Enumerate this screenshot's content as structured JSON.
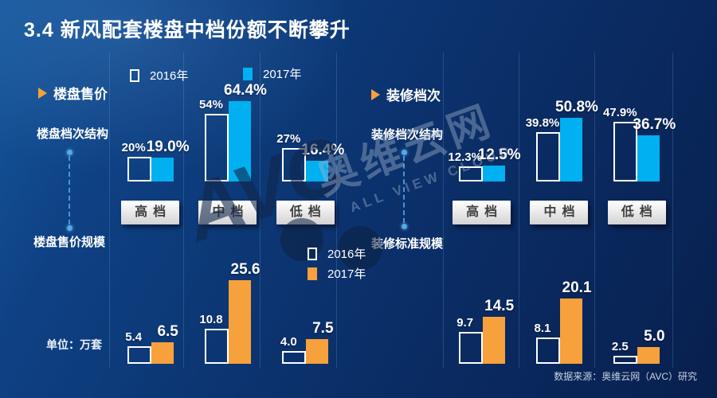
{
  "title": "3.4  新风配套楼盘中档份额不断攀升",
  "source": "数据来源：奥维云网（AVC）研究",
  "unit_label": "单位：万套",
  "watermark": {
    "brand_cn": "奥维云网",
    "brand_en": "ALL VIEW CLOUD",
    "logo": "AVC"
  },
  "colors": {
    "background": "#0b306a",
    "cyan_2017": "#00b0f0",
    "orange_2017": "#f6a13c",
    "outline_2016": "#ffffff",
    "accent": "#f6a13c"
  },
  "sections": {
    "left": {
      "title": "楼盘售价",
      "structure": "楼盘档次结构",
      "scale": "楼盘售价规模"
    },
    "right": {
      "title": "装修档次",
      "structure": "装修档次结构",
      "scale": "装修标准规模"
    }
  },
  "legends": {
    "top": [
      {
        "label": "2016年",
        "swatch": "outline"
      },
      {
        "label": "2017年",
        "swatch": "cyan"
      }
    ],
    "bottom": [
      {
        "label": "2016年",
        "swatch": "outline"
      },
      {
        "label": "2017年",
        "swatch": "orange"
      }
    ]
  },
  "chart_data": [
    {
      "id": "price-structure",
      "type": "bar",
      "panel": "top-left",
      "title": "楼盘档次结构",
      "unit": "%",
      "categories": [
        "高档",
        "中档",
        "低档"
      ],
      "ylim": [
        0,
        70
      ],
      "legend_position": "top",
      "series": [
        {
          "name": "2016年",
          "style": "outline",
          "values": [
            20,
            54,
            27
          ],
          "labels": [
            "20%",
            "54%",
            "27%"
          ]
        },
        {
          "name": "2017年",
          "style": "cyan",
          "values": [
            19.0,
            64.4,
            16.4
          ],
          "labels": [
            "19.0%",
            "64.4%",
            "16.4%"
          ]
        }
      ]
    },
    {
      "id": "decoration-structure",
      "type": "bar",
      "panel": "top-right",
      "title": "装修档次结构",
      "unit": "%",
      "categories": [
        "高档",
        "中档",
        "低档"
      ],
      "ylim": [
        0,
        70
      ],
      "series": [
        {
          "name": "2016年",
          "style": "outline",
          "values": [
            12.3,
            39.8,
            47.9
          ],
          "labels": [
            "12.3%",
            "39.8%",
            "47.9%"
          ]
        },
        {
          "name": "2017年",
          "style": "cyan",
          "values": [
            12.5,
            50.8,
            36.7
          ],
          "labels": [
            "12.5%",
            "50.8%",
            "36.7%"
          ]
        }
      ]
    },
    {
      "id": "price-scale",
      "type": "bar",
      "panel": "bottom-left",
      "title": "楼盘售价规模",
      "unit": "万套",
      "categories": [
        "高档",
        "中档",
        "低档"
      ],
      "ylim": [
        0,
        28
      ],
      "legend_position": "middle",
      "series": [
        {
          "name": "2016年",
          "style": "outline",
          "values": [
            5.4,
            10.8,
            4.0
          ],
          "labels": [
            "5.4",
            "10.8",
            "4.0"
          ]
        },
        {
          "name": "2017年",
          "style": "orange",
          "values": [
            6.5,
            25.6,
            7.5
          ],
          "labels": [
            "6.5",
            "25.6",
            "7.5"
          ]
        }
      ]
    },
    {
      "id": "decoration-scale",
      "type": "bar",
      "panel": "bottom-right",
      "title": "装修标准规模",
      "unit": "万套",
      "categories": [
        "高档",
        "中档",
        "低档"
      ],
      "ylim": [
        0,
        28
      ],
      "series": [
        {
          "name": "2016年",
          "style": "outline",
          "values": [
            9.7,
            8.1,
            2.5
          ],
          "labels": [
            "9.7",
            "8.1",
            "2.5"
          ]
        },
        {
          "name": "2017年",
          "style": "orange",
          "values": [
            14.5,
            20.1,
            5.0
          ],
          "labels": [
            "14.5",
            "20.1",
            "5.0"
          ]
        }
      ]
    }
  ]
}
